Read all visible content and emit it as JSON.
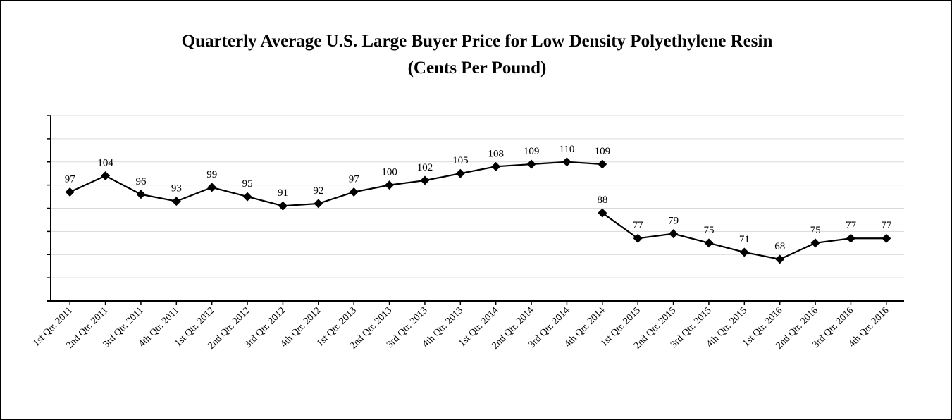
{
  "chart_data": {
    "type": "line",
    "title": "Quarterly Average U.S. Large Buyer Price for Low Density Polyethylene Resin",
    "subtitle": "(Cents Per Pound)",
    "categories": [
      "1st Qtr. 2011",
      "2nd Qtr. 2011",
      "3rd Qtr. 2011",
      "4th Qtr. 2011",
      "1st Qtr. 2012",
      "2nd Qtr. 2012",
      "3rd Qtr. 2012",
      "4th Qtr. 2012",
      "1st Qtr. 2013",
      "2nd Qtr. 2013",
      "3rd Qtr. 2013",
      "4th Qtr. 2013",
      "1st Qtr. 2014",
      "2nd Qtr. 2014",
      "3rd Qtr. 2014",
      "4th Qtr. 2014",
      "1st Qtr. 2015",
      "2nd Qtr. 2015",
      "3rd Qtr. 2015",
      "4th Qtr. 2015",
      "1st Qtr. 2016",
      "2nd Qtr. 2016",
      "3rd Qtr. 2016",
      "4th Qtr. 2016"
    ],
    "series": [
      {
        "color": "#000000",
        "values": [
          97,
          104,
          96,
          93,
          99,
          95,
          91,
          92,
          97,
          100,
          102,
          105,
          108,
          109,
          110,
          109,
          null,
          null,
          null,
          null,
          null,
          null,
          null,
          null
        ]
      },
      {
        "color": "#000000",
        "values": [
          null,
          null,
          null,
          null,
          null,
          null,
          null,
          null,
          null,
          null,
          null,
          null,
          null,
          null,
          null,
          88,
          77,
          79,
          75,
          71,
          68,
          75,
          77,
          77
        ]
      }
    ],
    "ylim": [
      50,
      130
    ],
    "yticks": [
      50,
      60,
      70,
      80,
      90,
      100,
      110,
      120,
      130
    ],
    "grid": true
  }
}
